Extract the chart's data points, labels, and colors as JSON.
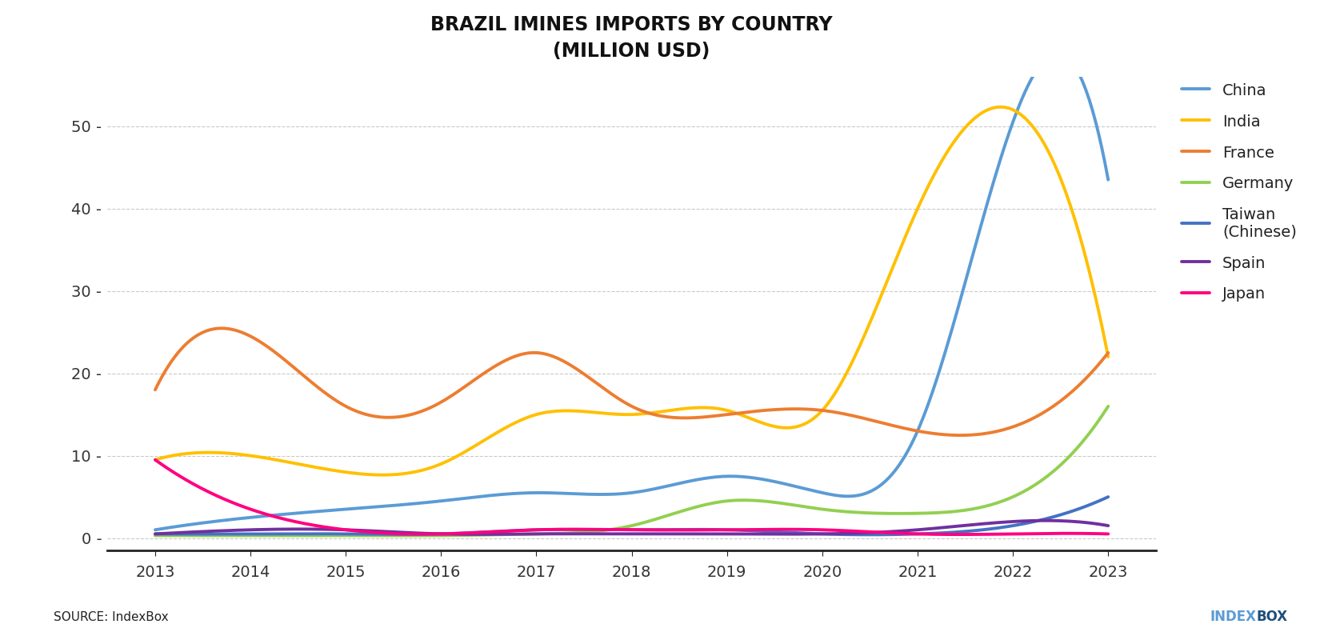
{
  "title_line1": "BRAZIL IMINES IMPORTS BY COUNTRY",
  "title_line2": "(MILLION USD)",
  "years": [
    2013,
    2014,
    2015,
    2016,
    2017,
    2018,
    2019,
    2020,
    2021,
    2022,
    2023
  ],
  "series": [
    {
      "label": "China",
      "color": "#5B9BD5",
      "values": [
        1.0,
        2.5,
        3.5,
        4.5,
        5.5,
        5.5,
        7.5,
        5.5,
        13.0,
        50.5,
        43.5
      ]
    },
    {
      "label": "India",
      "color": "#FFC000",
      "values": [
        9.5,
        10.0,
        8.0,
        9.0,
        15.0,
        15.0,
        15.5,
        15.5,
        40.0,
        52.0,
        22.0
      ]
    },
    {
      "label": "France",
      "color": "#ED7D31",
      "values": [
        18.0,
        24.5,
        16.0,
        16.5,
        22.5,
        16.0,
        15.0,
        15.5,
        13.0,
        13.5,
        22.5
      ]
    },
    {
      "label": "Germany",
      "color": "#92D050",
      "values": [
        0.3,
        0.3,
        0.3,
        0.3,
        0.5,
        1.5,
        4.5,
        3.5,
        3.0,
        5.0,
        16.0
      ]
    },
    {
      "label": "Taiwan\n(Chinese)",
      "color": "#4472C4",
      "values": [
        0.5,
        0.5,
        0.5,
        0.5,
        1.0,
        1.0,
        1.0,
        0.5,
        0.5,
        1.5,
        5.0
      ]
    },
    {
      "label": "Spain",
      "color": "#7030A0",
      "values": [
        0.5,
        1.0,
        1.0,
        0.5,
        0.5,
        0.5,
        0.5,
        0.5,
        1.0,
        2.0,
        1.5
      ]
    },
    {
      "label": "Japan",
      "color": "#FF0080",
      "values": [
        9.5,
        3.5,
        1.0,
        0.5,
        1.0,
        1.0,
        1.0,
        1.0,
        0.5,
        0.5,
        0.5
      ]
    }
  ],
  "ylim": [
    -1.5,
    56
  ],
  "yticks": [
    0,
    10,
    20,
    30,
    40,
    50
  ],
  "source_text": "SOURCE: IndexBox",
  "background_color": "#FFFFFF",
  "grid_color": "#BBBBBB",
  "line_width": 2.8
}
